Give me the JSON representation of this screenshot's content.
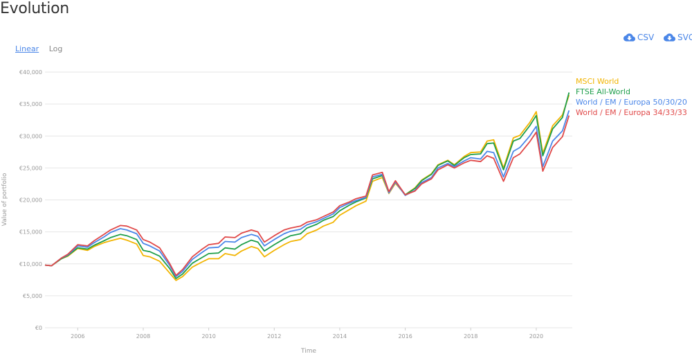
{
  "title": "Evolution",
  "scale_toggle": {
    "linear": "Linear",
    "log": "Log",
    "active": "linear"
  },
  "export": {
    "csv": "CSV",
    "svg": "SVG",
    "icon": "cloud-download-icon"
  },
  "colors": {
    "accent": "#4a86e8",
    "grid": "#e6e6e6"
  },
  "chart_data": {
    "type": "line",
    "xlabel": "Time",
    "ylabel": "Value of portfolio",
    "xlim": [
      2005.0,
      2021.1
    ],
    "ylim": [
      0,
      40000
    ],
    "y_ticks": [
      0,
      5000,
      10000,
      15000,
      20000,
      25000,
      30000,
      35000,
      40000
    ],
    "y_tick_labels": [
      "€0",
      "€5,000",
      "€10,000",
      "€15,000",
      "€20,000",
      "€25,000",
      "€30,000",
      "€35,000",
      "€40,000"
    ],
    "x_ticks": [
      2006,
      2008,
      2010,
      2012,
      2014,
      2016,
      2018,
      2020
    ],
    "x_tick_labels": [
      "2006",
      "2008",
      "2010",
      "2012",
      "2014",
      "2016",
      "2018",
      "2020"
    ],
    "legend_position": "right",
    "x": [
      2005.0,
      2005.2,
      2005.5,
      2005.7,
      2006.0,
      2006.3,
      2006.5,
      2006.8,
      2007.0,
      2007.3,
      2007.5,
      2007.8,
      2008.0,
      2008.2,
      2008.5,
      2008.8,
      2009.0,
      2009.2,
      2009.5,
      2009.8,
      2010.0,
      2010.3,
      2010.5,
      2010.8,
      2011.0,
      2011.3,
      2011.5,
      2011.7,
      2012.0,
      2012.3,
      2012.5,
      2012.8,
      2013.0,
      2013.3,
      2013.5,
      2013.8,
      2014.0,
      2014.3,
      2014.5,
      2014.8,
      2015.0,
      2015.3,
      2015.5,
      2015.7,
      2016.0,
      2016.3,
      2016.5,
      2016.8,
      2017.0,
      2017.3,
      2017.5,
      2017.8,
      2018.0,
      2018.3,
      2018.5,
      2018.7,
      2019.0,
      2019.3,
      2019.5,
      2019.8,
      2020.0,
      2020.2,
      2020.5,
      2020.8,
      2021.0
    ],
    "series": [
      {
        "name": "MSCI World",
        "color": "#f2b400",
        "values": [
          9800,
          9700,
          10800,
          11200,
          12400,
          12100,
          12700,
          13300,
          13600,
          14000,
          13700,
          13100,
          11300,
          11100,
          10400,
          8600,
          7400,
          8000,
          9500,
          10300,
          10800,
          10800,
          11600,
          11300,
          12000,
          12700,
          12400,
          11100,
          12100,
          13000,
          13500,
          13800,
          14700,
          15300,
          15900,
          16500,
          17600,
          18500,
          19100,
          19800,
          22900,
          23500,
          21000,
          22600,
          20800,
          21900,
          23100,
          24100,
          25500,
          26200,
          25500,
          26800,
          27400,
          27500,
          29200,
          29400,
          25000,
          29700,
          30100,
          32100,
          33800,
          27300,
          31600,
          33300,
          36400
        ]
      },
      {
        "name": "FTSE All-World",
        "color": "#1e9e4a",
        "values": [
          9800,
          9700,
          10800,
          11300,
          12500,
          12300,
          12900,
          13600,
          14100,
          14600,
          14400,
          13800,
          12100,
          11900,
          11200,
          9300,
          7700,
          8400,
          10100,
          11000,
          11600,
          11700,
          12500,
          12300,
          13000,
          13700,
          13400,
          12000,
          13000,
          13900,
          14400,
          14700,
          15600,
          16200,
          16800,
          17400,
          18300,
          19200,
          19700,
          20300,
          23300,
          23800,
          21200,
          22800,
          20800,
          21800,
          23000,
          24000,
          25400,
          26100,
          25400,
          26600,
          27100,
          27200,
          28800,
          28900,
          24700,
          29200,
          29600,
          31600,
          33200,
          26900,
          31100,
          32900,
          36800
        ]
      },
      {
        "name": "World / EM / Europa 50/30/20",
        "color": "#4a86e8",
        "values": [
          9800,
          9700,
          10900,
          11400,
          12800,
          12600,
          13300,
          14200,
          14900,
          15500,
          15300,
          14700,
          13200,
          12800,
          12000,
          9800,
          8000,
          8800,
          10700,
          11800,
          12500,
          12600,
          13500,
          13400,
          14100,
          14600,
          14300,
          12800,
          13800,
          14700,
          15100,
          15400,
          16100,
          16600,
          17100,
          17800,
          18800,
          19500,
          19900,
          20400,
          23600,
          24000,
          21100,
          22800,
          20700,
          21500,
          22700,
          23500,
          25000,
          25700,
          25200,
          26100,
          26600,
          26400,
          27600,
          27400,
          23600,
          27600,
          28200,
          30000,
          31500,
          25200,
          29200,
          30800,
          34000
        ]
      },
      {
        "name": "World / EM / Europa 34/33/33",
        "color": "#e04848",
        "values": [
          9800,
          9700,
          10900,
          11500,
          13000,
          12800,
          13600,
          14600,
          15300,
          16000,
          15900,
          15300,
          13800,
          13400,
          12500,
          10100,
          8200,
          9100,
          11100,
          12300,
          13000,
          13200,
          14200,
          14100,
          14800,
          15300,
          15000,
          13400,
          14400,
          15300,
          15600,
          15900,
          16500,
          16900,
          17400,
          18100,
          19100,
          19700,
          20200,
          20600,
          23900,
          24300,
          21300,
          23000,
          20800,
          21400,
          22500,
          23300,
          24700,
          25500,
          25000,
          25800,
          26200,
          26000,
          26900,
          26500,
          22900,
          26600,
          27200,
          29100,
          30600,
          24500,
          28200,
          29900,
          33200
        ]
      }
    ]
  }
}
